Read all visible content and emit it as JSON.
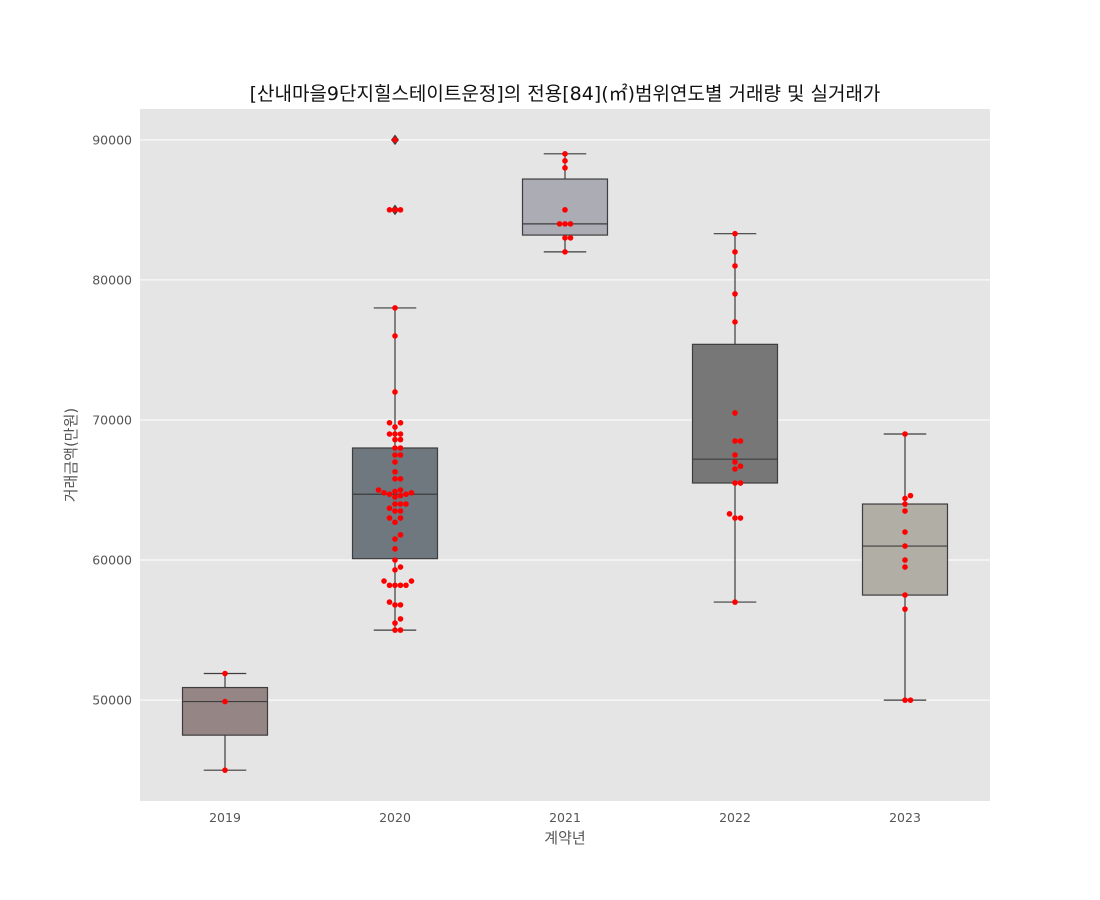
{
  "chart_data": {
    "type": "box",
    "title": "[산내마을9단지힐스테이트운정]의 전용[84](㎡)범위연도별 거래량 및 실거래가",
    "xlabel": "계약년",
    "ylabel": "거래금액(만원)",
    "categories": [
      "2019",
      "2020",
      "2021",
      "2022",
      "2023"
    ],
    "yticks": [
      50000,
      60000,
      70000,
      80000,
      90000
    ],
    "ylim": [
      42800,
      92200
    ],
    "grid": true,
    "box_colors": [
      "#958584",
      "#6f777f",
      "#acacb4",
      "#777777",
      "#b1aea5"
    ],
    "point_color": "#ff0000",
    "boxes": [
      {
        "q1": 47500,
        "median": 49900,
        "q3": 50900,
        "whisker_low": 45000,
        "whisker_high": 51900,
        "outliers": []
      },
      {
        "q1": 60100,
        "median": 64700,
        "q3": 68000,
        "whisker_low": 55000,
        "whisker_high": 78000,
        "outliers": [
          85000,
          90000
        ]
      },
      {
        "q1": 83200,
        "median": 84000,
        "q3": 87200,
        "whisker_low": 82000,
        "whisker_high": 89000,
        "outliers": []
      },
      {
        "q1": 65500,
        "median": 67200,
        "q3": 75400,
        "whisker_low": 57000,
        "whisker_high": 83300,
        "outliers": []
      },
      {
        "q1": 57500,
        "median": 61000,
        "q3": 64000,
        "whisker_low": 50000,
        "whisker_high": 69000,
        "outliers": []
      }
    ],
    "points": [
      [
        45000,
        49900,
        51900
      ],
      [
        55000,
        55000,
        55500,
        55800,
        56800,
        56800,
        57000,
        58200,
        58200,
        58200,
        58200,
        58500,
        58500,
        59300,
        59500,
        60000,
        60800,
        61500,
        61800,
        62700,
        63000,
        63000,
        63500,
        63500,
        63700,
        64000,
        64000,
        64000,
        64500,
        64600,
        64700,
        64700,
        64800,
        64800,
        64900,
        65000,
        65000,
        65800,
        65800,
        66300,
        67000,
        67500,
        67500,
        68000,
        68000,
        68600,
        68600,
        69000,
        69000,
        69000,
        69500,
        69800,
        69800,
        72000,
        76000,
        78000,
        85000,
        85000,
        85000,
        90000
      ],
      [
        82000,
        83000,
        83000,
        84000,
        84000,
        84000,
        85000,
        88000,
        88500,
        89000
      ],
      [
        57000,
        63000,
        63000,
        63300,
        65500,
        65500,
        66500,
        66700,
        67000,
        67500,
        68500,
        68500,
        70500,
        77000,
        79000,
        81000,
        82000,
        83300
      ],
      [
        50000,
        50000,
        56500,
        57500,
        59500,
        60000,
        61000,
        62000,
        63500,
        64000,
        64400,
        64600,
        69000
      ]
    ]
  }
}
